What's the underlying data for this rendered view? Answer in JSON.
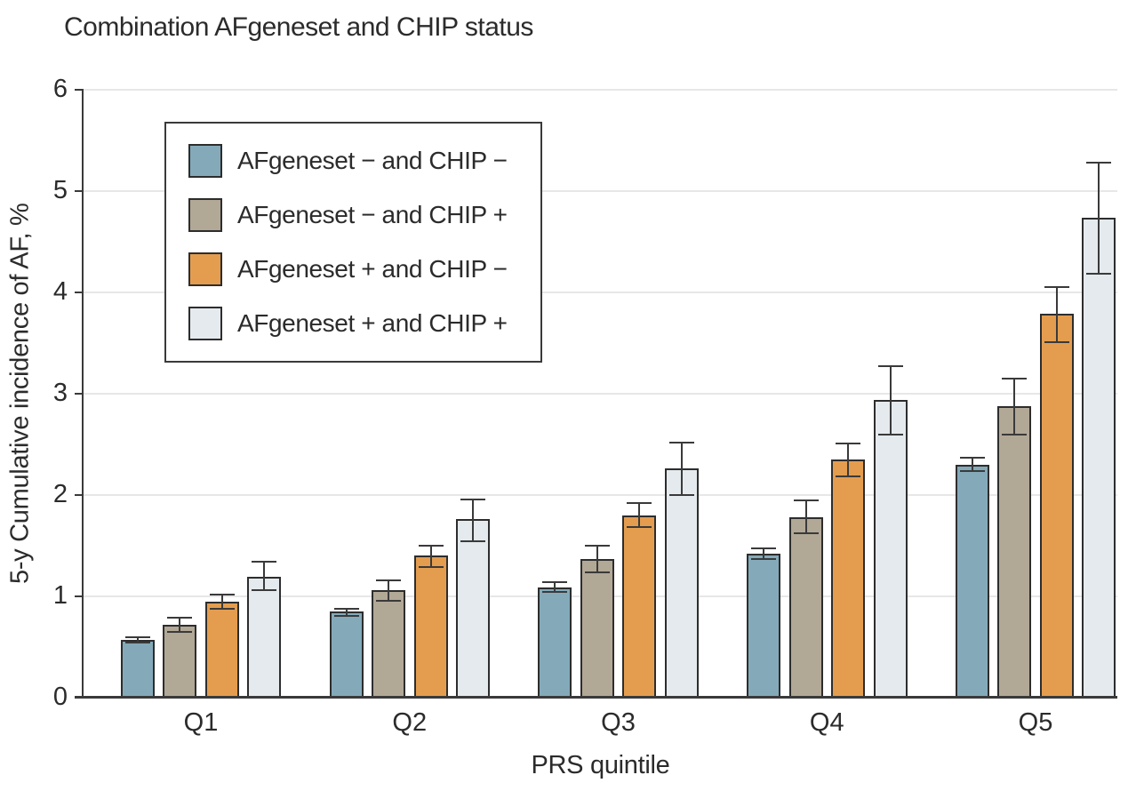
{
  "chart_data": {
    "type": "bar",
    "title": "Combination AFgeneset and CHIP status",
    "xlabel": "PRS quintile",
    "ylabel": "5-y Cumulative incidence of AF, %",
    "categories": [
      "Q1",
      "Q2",
      "Q3",
      "Q4",
      "Q5"
    ],
    "ylim": [
      0,
      6
    ],
    "yticks": [
      0,
      1,
      2,
      3,
      4,
      5,
      6
    ],
    "grid": true,
    "error_bars": true,
    "legend_position": "upper-left-inside",
    "axis_color": "#3a3a3a",
    "gridline_color": "#e7e7e7",
    "series": [
      {
        "name": "AFgeneset − and CHIP −",
        "color": "#84aaba",
        "values": [
          0.57,
          0.85,
          1.09,
          1.42,
          2.3
        ],
        "ci_low": [
          0.54,
          0.81,
          1.04,
          1.37,
          2.24
        ],
        "ci_high": [
          0.6,
          0.88,
          1.14,
          1.47,
          2.37
        ]
      },
      {
        "name": "AFgeneset − and CHIP +",
        "color": "#b2a896",
        "values": [
          0.72,
          1.06,
          1.37,
          1.78,
          2.88
        ],
        "ci_low": [
          0.65,
          0.96,
          1.24,
          1.62,
          2.6
        ],
        "ci_high": [
          0.79,
          1.16,
          1.5,
          1.95,
          3.15
        ]
      },
      {
        "name": "AFgeneset + and CHIP −",
        "color": "#e49d4f",
        "values": [
          0.95,
          1.4,
          1.8,
          2.35,
          3.79
        ],
        "ci_low": [
          0.88,
          1.29,
          1.68,
          2.18,
          3.51
        ],
        "ci_high": [
          1.02,
          1.5,
          1.92,
          2.51,
          4.05
        ]
      },
      {
        "name": "AFgeneset + and CHIP +",
        "color": "#e4eaed",
        "values": [
          1.19,
          1.76,
          2.26,
          2.94,
          4.74
        ],
        "ci_low": [
          1.06,
          1.54,
          2.0,
          2.6,
          4.18
        ],
        "ci_high": [
          1.34,
          1.96,
          2.52,
          3.27,
          5.28
        ]
      }
    ]
  }
}
